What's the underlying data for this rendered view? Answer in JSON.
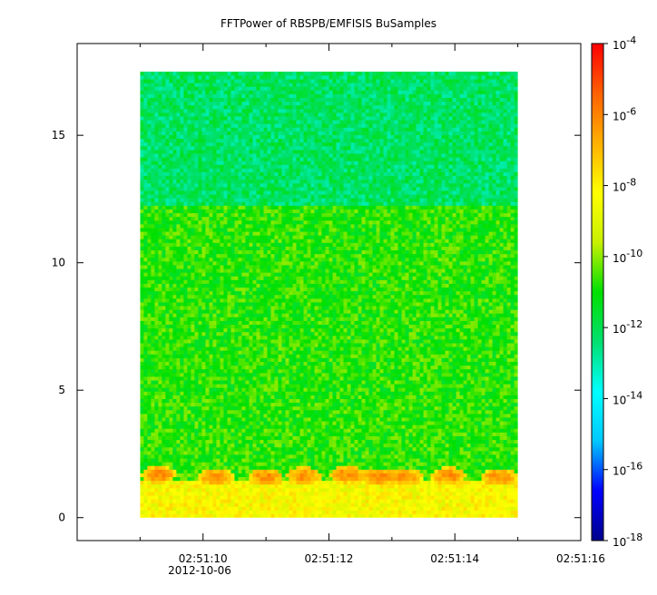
{
  "chart_data": {
    "type": "heatmap",
    "title": "FFTPower of RBSPB/EMFISIS  BuSamples",
    "xlabel": "",
    "ylabel": "",
    "x_tick_labels": [
      "02:51:10",
      "02:51:12",
      "02:51:14",
      "02:51:16"
    ],
    "x_date_label": "2012-10-06",
    "x_range_s": [
      8.0,
      16.0
    ],
    "x_major_ticks_s": [
      10,
      12,
      14,
      16
    ],
    "x_minor_ticks_s": [
      9,
      11,
      13,
      15
    ],
    "data_x_range_s": [
      9.0,
      15.0
    ],
    "ylim": [
      -0.9,
      18.6
    ],
    "y_ticks": [
      0,
      5,
      10,
      15
    ],
    "data_y_range": [
      0,
      17.5
    ],
    "colorbar": {
      "scale": "log",
      "range": [
        1e-18,
        0.0001
      ],
      "tick_labels": [
        {
          "base": "10",
          "exp": "-4"
        },
        {
          "base": "10",
          "exp": "-6"
        },
        {
          "base": "10",
          "exp": "-8"
        },
        {
          "base": "10",
          "exp": "-10"
        },
        {
          "base": "10",
          "exp": "-12"
        },
        {
          "base": "10",
          "exp": "-14"
        },
        {
          "base": "10",
          "exp": "-16"
        },
        {
          "base": "10",
          "exp": "-18"
        }
      ],
      "colors": [
        "#00008b",
        "#0000ff",
        "#00c8ff",
        "#00ffff",
        "#00e070",
        "#00e000",
        "#c8f000",
        "#ffff00",
        "#ffb000",
        "#ff6000",
        "#ff0000"
      ]
    },
    "bands": [
      {
        "y_from": 12.2,
        "y_to": 17.5,
        "log10_power": -12.2
      },
      {
        "y_from": 1.5,
        "y_to": 12.2,
        "log10_power": -10.8
      },
      {
        "y_from": 0.0,
        "y_to": 1.5,
        "log10_power": -8.3
      }
    ],
    "bursts_log10_power": -6.2,
    "bursts": [
      {
        "t": 9.3,
        "f": 1.7
      },
      {
        "t": 10.2,
        "f": 1.6
      },
      {
        "t": 11.0,
        "f": 1.6
      },
      {
        "t": 11.6,
        "f": 1.65
      },
      {
        "t": 12.3,
        "f": 1.7
      },
      {
        "t": 12.8,
        "f": 1.6
      },
      {
        "t": 13.2,
        "f": 1.6
      },
      {
        "t": 13.9,
        "f": 1.65
      },
      {
        "t": 14.7,
        "f": 1.6
      }
    ]
  }
}
